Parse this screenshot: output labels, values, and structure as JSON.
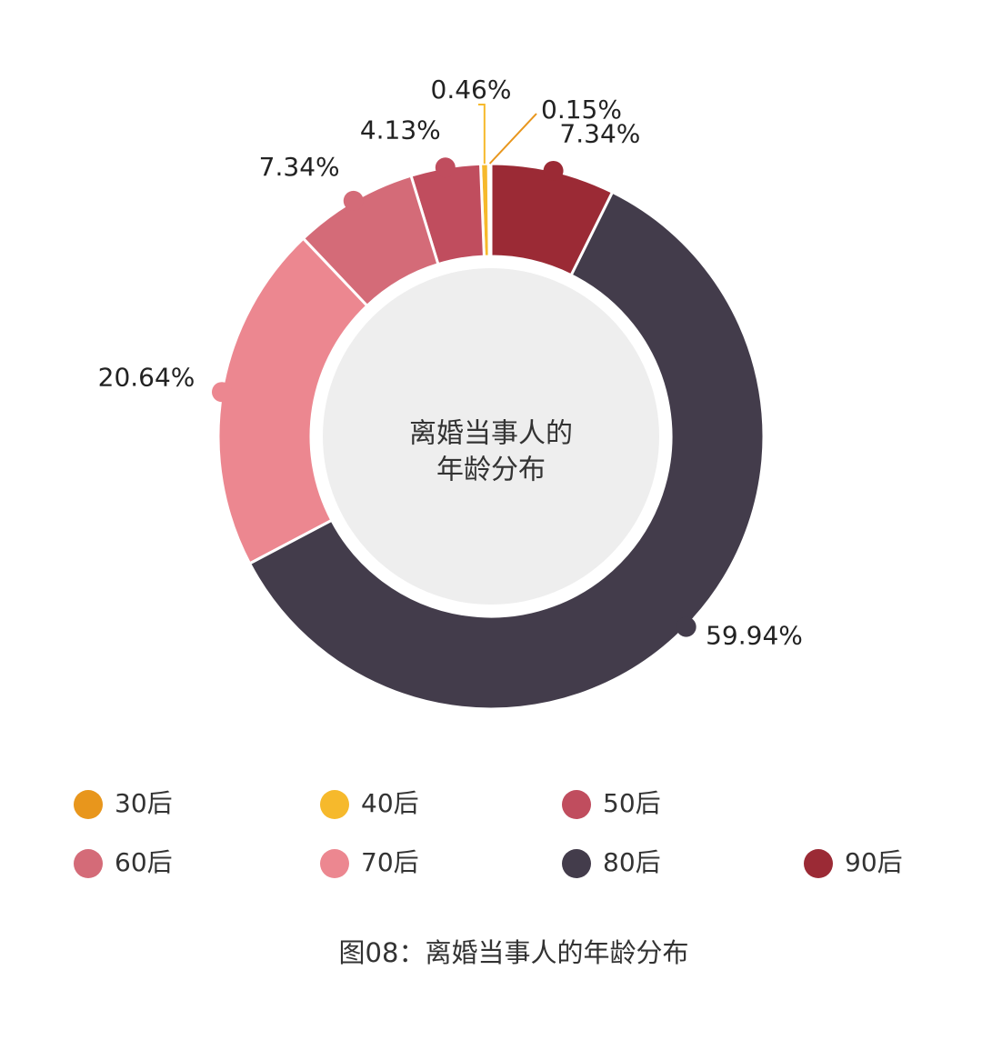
{
  "chart_data": {
    "type": "pie",
    "categories": [
      "30后",
      "40后",
      "50后",
      "60后",
      "70后",
      "80后",
      "90后"
    ],
    "values": [
      0.15,
      0.46,
      4.13,
      7.34,
      20.64,
      59.94,
      7.34
    ],
    "value_labels": [
      "0.15%",
      "0.46%",
      "4.13%",
      "7.34%",
      "20.64%",
      "59.94%",
      "7.34%"
    ],
    "colors": [
      "#e8961c",
      "#f6b92c",
      "#c04d5e",
      "#d46b78",
      "#ec8790",
      "#433c4b",
      "#9b2a35"
    ],
    "center_label": [
      "离婚当事人的",
      "年龄分布"
    ],
    "caption": "图08：离婚当事人的年龄分布"
  }
}
